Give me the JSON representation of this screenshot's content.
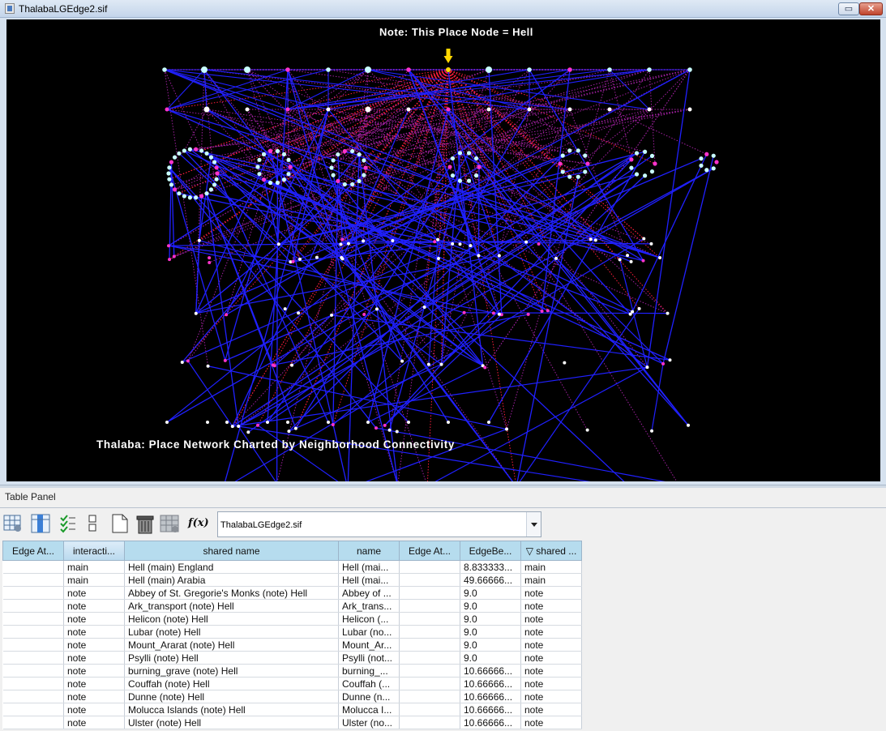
{
  "window": {
    "title": "ThalabaLGEdge2.sif",
    "minimize_label": "▭",
    "close_label": "✕"
  },
  "network": {
    "note": "Note: This Place Node = Hell",
    "title": "Thalaba: Place Network Charted by Neighborhood Connectivity",
    "colors": {
      "background": "#000000",
      "main_edge": "#2020ff",
      "note_edge": "#ff1e3c",
      "purple_edge": "#a020a0",
      "node_white": "#ffffff",
      "node_cyan": "#c8ffff",
      "node_magenta": "#ff33cc",
      "hell_marker": "#ffd700"
    }
  },
  "panel": {
    "label": "Table Panel",
    "toolbar_icons": [
      "table-settings-icon",
      "column-select-icon",
      "checklist-icon",
      "split-layout-icon",
      "new-document-icon",
      "trash-icon",
      "calculator-icon",
      "function-icon"
    ],
    "function_label": "f(x)",
    "file_selected": "ThalabaLGEdge2.sif"
  },
  "table": {
    "columns": [
      "Edge At...",
      "interacti...",
      "shared name",
      "name",
      "Edge At...",
      "EdgeBe...",
      "▽ shared ..."
    ],
    "rows": [
      [
        "",
        "main",
        "Hell (main) England",
        "Hell (mai...",
        "",
        "8.833333...",
        "main"
      ],
      [
        "",
        "main",
        "Hell (main) Arabia",
        "Hell (mai...",
        "",
        "49.66666...",
        "main"
      ],
      [
        "",
        "note",
        "Abbey of St. Gregorie's Monks (note) Hell",
        "Abbey of ...",
        "",
        "9.0",
        "note"
      ],
      [
        "",
        "note",
        "Ark_transport (note) Hell",
        "Ark_trans...",
        "",
        "9.0",
        "note"
      ],
      [
        "",
        "note",
        "Helicon (note) Hell",
        "Helicon (...",
        "",
        "9.0",
        "note"
      ],
      [
        "",
        "note",
        "Lubar (note) Hell",
        "Lubar (no...",
        "",
        "9.0",
        "note"
      ],
      [
        "",
        "note",
        "Mount_Ararat (note) Hell",
        "Mount_Ar...",
        "",
        "9.0",
        "note"
      ],
      [
        "",
        "note",
        "Psylli (note) Hell",
        "Psylli (not...",
        "",
        "9.0",
        "note"
      ],
      [
        "",
        "note",
        "burning_grave (note) Hell",
        "burning_...",
        "",
        "10.66666...",
        "note"
      ],
      [
        "",
        "note",
        "Couffah (note) Hell",
        "Couffah (...",
        "",
        "10.66666...",
        "note"
      ],
      [
        "",
        "note",
        "Dunne (note) Hell",
        "Dunne (n...",
        "",
        "10.66666...",
        "note"
      ],
      [
        "",
        "note",
        "Molucca Islands (note) Hell",
        "Molucca I...",
        "",
        "10.66666...",
        "note"
      ],
      [
        "",
        "note",
        "Ulster (note) Hell",
        "Ulster (no...",
        "",
        "10.66666...",
        "note"
      ]
    ]
  }
}
